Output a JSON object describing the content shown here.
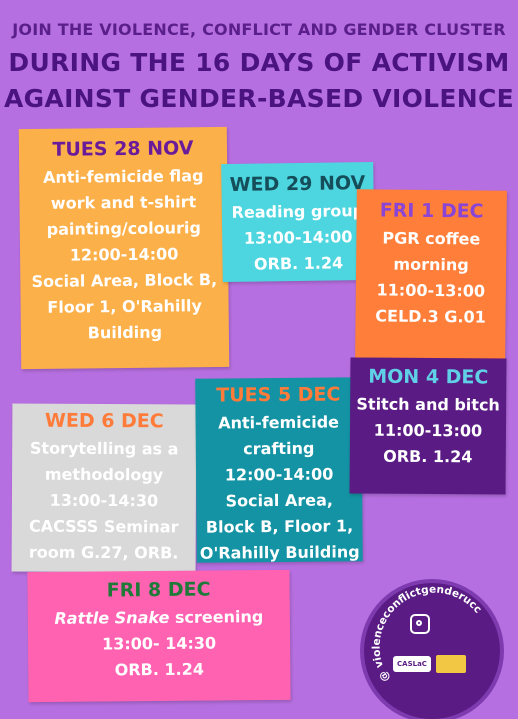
{
  "header": {
    "line1": "JOIN THE VIOLENCE, CONFLICT AND GENDER CLUSTER",
    "line2": "DURING THE 16 DAYS OF ACTIVISM",
    "line3": "AGAINST GENDER-BASED VIOLENCE"
  },
  "events": {
    "tue28": {
      "day": "TUES 28 NOV",
      "lines": [
        "Anti-femicide flag",
        "work and t-shirt",
        "painting/colourig",
        "12:00-14:00",
        "Social Area, Block B,",
        "Floor 1, O'Rahilly",
        "Building"
      ]
    },
    "wed29": {
      "day": "WED 29 NOV",
      "lines": [
        "Reading group",
        "13:00-14:00",
        "ORB. 1.24"
      ]
    },
    "fri1": {
      "day": "FRI 1 DEC",
      "lines": [
        "PGR coffee",
        "morning",
        "11:00-13:00",
        "CELD.3 G.01"
      ]
    },
    "mon4": {
      "day": "MON 4 DEC",
      "lines": [
        "Stitch and bitch",
        "11:00-13:00",
        "ORB. 1.24"
      ]
    },
    "tue5": {
      "day": "TUES 5 DEC",
      "lines": [
        "Anti-femicide",
        "crafting",
        "12:00-14:00",
        "Social Area,",
        "Block B, Floor 1,",
        "O'Rahilly Building"
      ]
    },
    "wed6": {
      "day": "WED 6 DEC",
      "lines": [
        "Storytelling as a",
        "methodology",
        "13:00-14:30",
        "CACSSS Seminar",
        "room G.27, ORB."
      ]
    },
    "fri8": {
      "day": "FRI 8 DEC",
      "title_italic": "Rattle Snake",
      "title_rest": " screening",
      "lines": [
        "13:00- 14:30",
        "ORB. 1.24"
      ]
    }
  },
  "social": {
    "handle": "@ violenceconflictgenderucc",
    "icon": "instagram-icon",
    "logo_label": "CASLaC"
  },
  "colors": {
    "background": "#b66fe0",
    "header": "#4a1380"
  }
}
